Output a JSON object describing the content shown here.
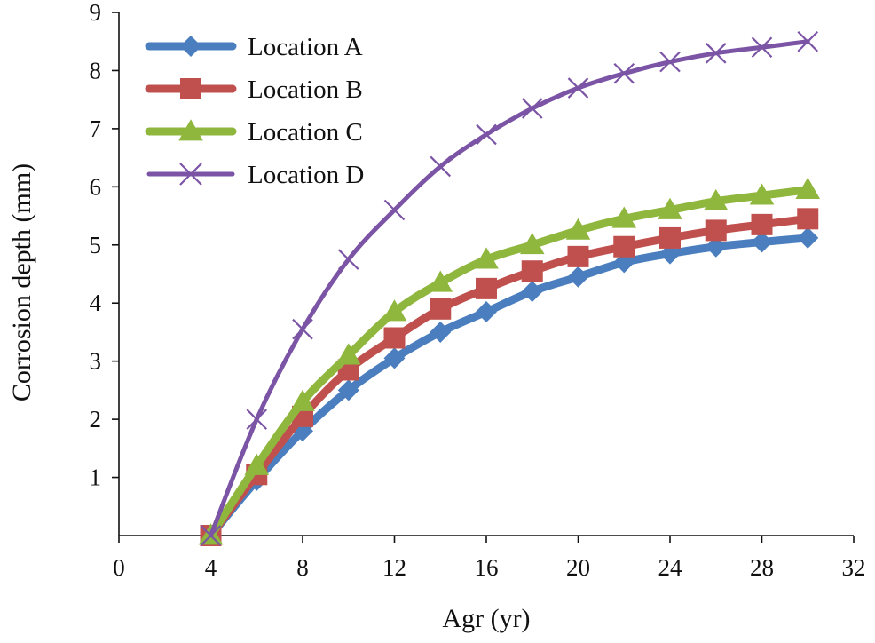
{
  "chart_data": {
    "type": "line",
    "title": "",
    "xlabel": "Agr (yr)",
    "ylabel": "Corrosion depth (mm)",
    "xlim": [
      0,
      32
    ],
    "ylim": [
      0,
      9
    ],
    "xticks": [
      "0",
      "4",
      "8",
      "12",
      "16",
      "20",
      "24",
      "28",
      "32"
    ],
    "yticks": [
      "1",
      "2",
      "3",
      "4",
      "5",
      "6",
      "7",
      "8",
      "9"
    ],
    "grid": false,
    "legend_position": "top-left",
    "x": [
      4,
      6,
      8,
      10,
      12,
      14,
      16,
      18,
      20,
      22,
      24,
      26,
      28,
      30
    ],
    "series": [
      {
        "name": "Location A",
        "color": "#4a7ebf",
        "marker": "diamond",
        "values": [
          0.0,
          0.95,
          1.8,
          2.5,
          3.05,
          3.5,
          3.85,
          4.2,
          4.45,
          4.7,
          4.85,
          4.97,
          5.05,
          5.12
        ]
      },
      {
        "name": "Location B",
        "color": "#c0504d",
        "marker": "square",
        "values": [
          0.0,
          1.05,
          2.05,
          2.85,
          3.4,
          3.9,
          4.25,
          4.55,
          4.8,
          4.97,
          5.12,
          5.25,
          5.35,
          5.45
        ]
      },
      {
        "name": "Location C",
        "color": "#8fb73e",
        "marker": "triangle",
        "values": [
          0.0,
          1.2,
          2.3,
          3.1,
          3.85,
          4.35,
          4.75,
          5.0,
          5.25,
          5.45,
          5.6,
          5.75,
          5.85,
          5.95
        ]
      },
      {
        "name": "Location D",
        "color": "#7b54a5",
        "marker": "x",
        "values": [
          0.0,
          2.0,
          3.55,
          4.75,
          5.6,
          6.35,
          6.9,
          7.35,
          7.7,
          7.95,
          8.15,
          8.3,
          8.4,
          8.5
        ]
      }
    ]
  }
}
